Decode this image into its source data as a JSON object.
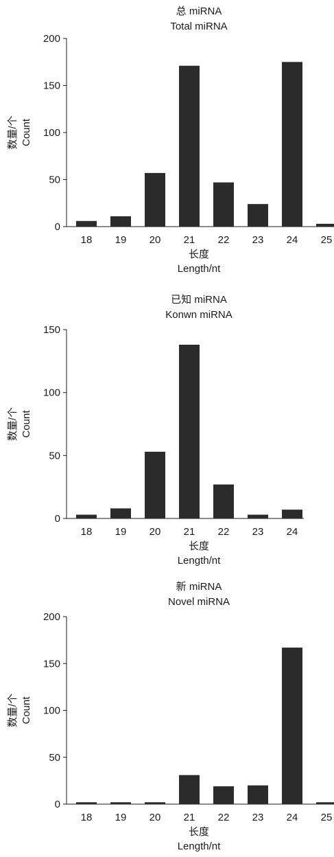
{
  "chart_data": [
    {
      "type": "bar",
      "title": "总 miRNA",
      "subtitle": "Total miRNA",
      "xlabel": "长度",
      "xlabel_en": "Length/nt",
      "ylabel": "数量/个",
      "ylabel_en": "Count",
      "categories": [
        "18",
        "19",
        "20",
        "21",
        "22",
        "23",
        "24",
        "25"
      ],
      "values": [
        6,
        11,
        57,
        171,
        47,
        24,
        175,
        3
      ],
      "ylim": [
        0,
        200
      ],
      "yticks": [
        0,
        50,
        100,
        150,
        200
      ],
      "bar_color": "#2b2b2b"
    },
    {
      "type": "bar",
      "title": "已知 miRNA",
      "subtitle": "Konwn miRNA",
      "xlabel": "长度",
      "xlabel_en": "Length/nt",
      "ylabel": "数量/个",
      "ylabel_en": "Count",
      "categories": [
        "18",
        "19",
        "20",
        "21",
        "22",
        "23",
        "24"
      ],
      "values": [
        3,
        8,
        53,
        138,
        27,
        3,
        7
      ],
      "ylim": [
        0,
        150
      ],
      "yticks": [
        0,
        50,
        100,
        150
      ],
      "bar_color": "#2b2b2b"
    },
    {
      "type": "bar",
      "title": "新 miRNA",
      "subtitle": "Novel miRNA",
      "xlabel": "长度",
      "xlabel_en": "Length/nt",
      "ylabel": "数量/个",
      "ylabel_en": "Count",
      "categories": [
        "18",
        "19",
        "20",
        "21",
        "22",
        "23",
        "24",
        "25"
      ],
      "values": [
        2,
        2,
        2,
        31,
        19,
        20,
        167,
        2
      ],
      "ylim": [
        0,
        200
      ],
      "yticks": [
        0,
        50,
        100,
        150,
        200
      ],
      "bar_color": "#2b2b2b"
    }
  ]
}
